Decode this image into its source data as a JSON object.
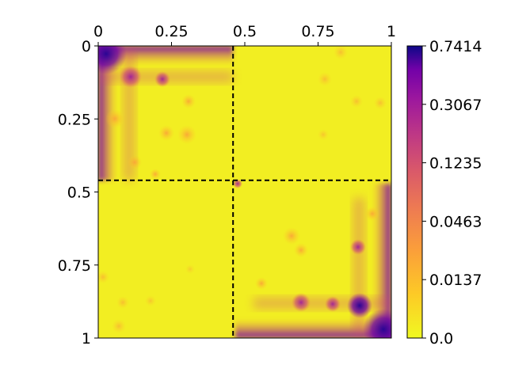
{
  "chart_data": {
    "type": "heatmap",
    "title": "",
    "xlabel": "",
    "ylabel": "",
    "x_ticks": [
      "0",
      "0.25",
      "0.5",
      "0.75",
      "1"
    ],
    "y_ticks": [
      "0",
      "0.25",
      "0.5",
      "0.75",
      "1"
    ],
    "x_tick_values": [
      0,
      0.25,
      0.5,
      0.75,
      1
    ],
    "y_tick_values": [
      0,
      0.25,
      0.5,
      0.75,
      1
    ],
    "xlim": [
      0,
      1
    ],
    "ylim": [
      0,
      1
    ],
    "y_inverted": true,
    "x_axis_position": "top",
    "grid": false,
    "colormap": "plasma (reversed: yellow = low, dark purple = high)",
    "color_scale": "log-like",
    "colorbar": {
      "ticks": [
        "0.0",
        "0.0137",
        "0.0463",
        "0.1235",
        "0.3067",
        "0.7414"
      ],
      "tick_values": [
        0.0,
        0.0137,
        0.0463,
        0.1235,
        0.3067,
        0.7414
      ],
      "min": 0.0,
      "max": 0.7414
    },
    "divider": {
      "x": 0.46,
      "y": 0.46,
      "style": "dashed",
      "color": "#000000"
    },
    "blocks": [
      {
        "name": "top-left",
        "range_x": [
          0,
          0.46
        ],
        "range_y": [
          0,
          0.46
        ],
        "pattern": "high values along top and left edges, scattered mid-level spots",
        "peak_value": 0.7414
      },
      {
        "name": "top-right",
        "range_x": [
          0.46,
          1
        ],
        "range_y": [
          0,
          0.46
        ],
        "pattern": "near zero, faint spots near right edge"
      },
      {
        "name": "bottom-left",
        "range_x": [
          0,
          0.46
        ],
        "range_y": [
          0.46,
          1
        ],
        "pattern": "near zero, faint spots near left and bottom edges"
      },
      {
        "name": "bottom-right",
        "range_x": [
          0.46,
          1
        ],
        "range_y": [
          0.46,
          1
        ],
        "pattern": "high values along bottom and right edges, corner peak",
        "peak_value": 0.7414
      }
    ]
  }
}
